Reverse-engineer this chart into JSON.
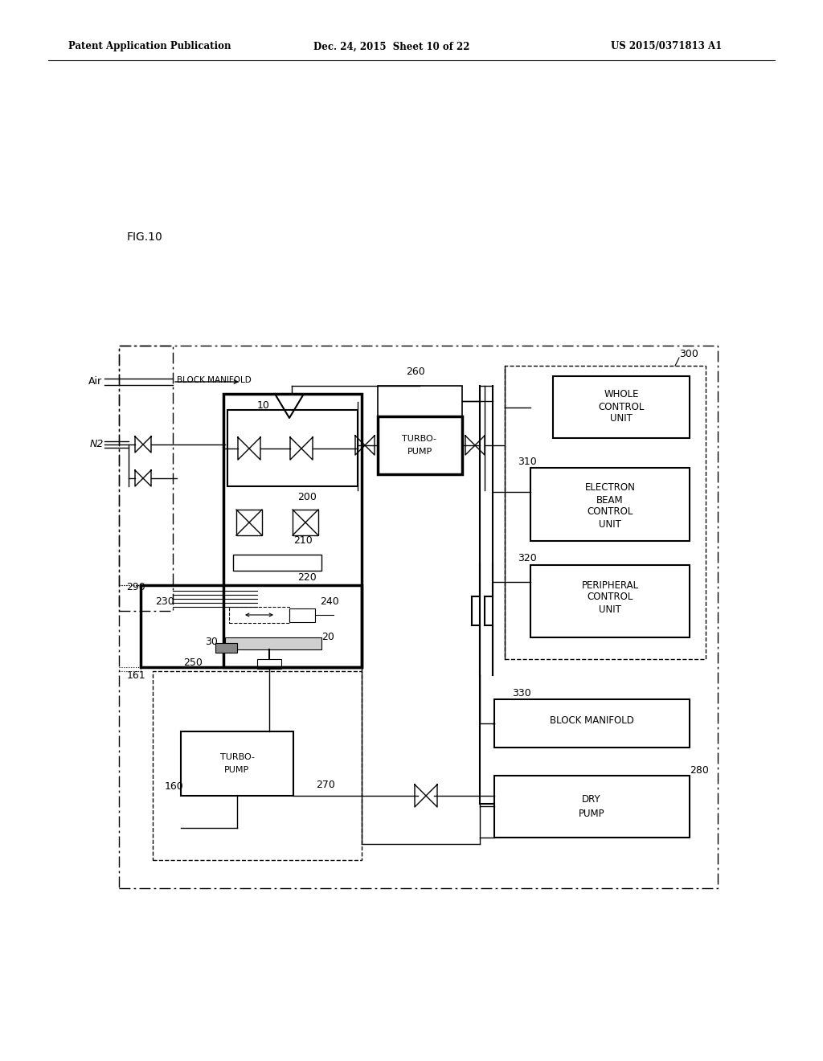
{
  "header_left": "Patent Application Publication",
  "header_center": "Dec. 24, 2015  Sheet 10 of 22",
  "header_right": "US 2015/0371813 A1",
  "fig_label": "FIG.10",
  "bg_color": "#ffffff",
  "line_color": "#000000"
}
